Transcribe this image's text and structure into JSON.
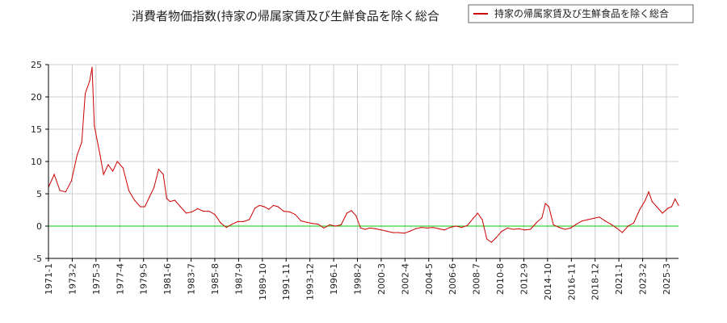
{
  "chart_data": {
    "type": "line",
    "title": "消費者物価指数(持家の帰属家賃及び生鮮食品を除く総合",
    "xlabel": "",
    "ylabel": "",
    "ylim": [
      -5,
      25
    ],
    "y_ticks": [
      -5,
      0,
      5,
      10,
      15,
      20,
      25
    ],
    "x_tick_labels": [
      "1971-1",
      "1973-2",
      "1975-3",
      "1977-4",
      "1979-5",
      "1981-6",
      "1983-7",
      "1985-8",
      "1987-9",
      "1989-10",
      "1991-11",
      "1993-12",
      "1996-1",
      "1998-2",
      "2000-3",
      "2002-4",
      "2004-5",
      "2006-6",
      "2008-7",
      "2010-8",
      "2012-9",
      "2014-10",
      "2016-11",
      "2018-12",
      "2021-1",
      "2023-2",
      "2025-3"
    ],
    "legend_position": "top-right",
    "grid": true,
    "colors": {
      "series": "#cc0000",
      "zero_line": "#00cc00",
      "grid": "#cccccc"
    },
    "series": [
      {
        "name": "持家の帰属家賃及び生鮮食品を除く総合",
        "x": [
          1971.0,
          1971.5,
          1972.0,
          1972.5,
          1973.0,
          1973.5,
          1973.9,
          1974.2,
          1974.6,
          1974.8,
          1975.0,
          1975.5,
          1975.8,
          1976.2,
          1976.6,
          1977.0,
          1977.5,
          1978.0,
          1978.5,
          1979.0,
          1979.4,
          1979.8,
          1980.2,
          1980.6,
          1981.0,
          1981.3,
          1981.6,
          1982.0,
          1982.5,
          1983.0,
          1983.5,
          1984.0,
          1984.5,
          1985.0,
          1985.5,
          1986.0,
          1986.5,
          1987.0,
          1987.5,
          1988.0,
          1988.5,
          1989.0,
          1989.4,
          1989.8,
          1990.2,
          1990.6,
          1991.0,
          1991.5,
          1992.0,
          1992.5,
          1993.0,
          1993.5,
          1994.0,
          1994.5,
          1995.0,
          1995.5,
          1996.0,
          1996.5,
          1997.0,
          1997.4,
          1997.8,
          1998.2,
          1998.6,
          1999.0,
          1999.5,
          2000.0,
          2000.5,
          2001.0,
          2001.5,
          2002.0,
          2002.5,
          2003.0,
          2003.5,
          2004.0,
          2004.5,
          2005.0,
          2005.5,
          2006.0,
          2006.5,
          2007.0,
          2007.5,
          2008.0,
          2008.4,
          2008.8,
          2009.2,
          2009.6,
          2010.0,
          2010.5,
          2011.0,
          2011.5,
          2012.0,
          2012.5,
          2013.0,
          2013.5,
          2014.0,
          2014.3,
          2014.6,
          2015.0,
          2015.5,
          2016.0,
          2016.5,
          2017.0,
          2017.5,
          2018.0,
          2018.5,
          2019.0,
          2019.5,
          2020.0,
          2020.5,
          2021.0,
          2021.5,
          2022.0,
          2022.5,
          2023.0,
          2023.3,
          2023.6,
          2024.0,
          2024.5,
          2025.0,
          2025.3,
          2025.6,
          2025.9
        ],
        "values": [
          6.0,
          8.0,
          5.5,
          5.3,
          7.0,
          11.0,
          13.0,
          20.5,
          22.5,
          24.6,
          15.5,
          11.0,
          8.0,
          9.5,
          8.5,
          10.0,
          9.0,
          5.5,
          4.0,
          3.0,
          3.0,
          4.5,
          6.0,
          8.8,
          8.0,
          4.3,
          3.8,
          4.0,
          3.0,
          2.0,
          2.2,
          2.7,
          2.3,
          2.3,
          1.8,
          0.5,
          -0.2,
          0.3,
          0.7,
          0.7,
          1.0,
          2.8,
          3.2,
          3.0,
          2.6,
          3.2,
          3.0,
          2.3,
          2.2,
          1.8,
          0.8,
          0.6,
          0.4,
          0.3,
          -0.3,
          0.2,
          0.0,
          0.2,
          2.0,
          2.4,
          1.6,
          -0.3,
          -0.5,
          -0.3,
          -0.4,
          -0.6,
          -0.8,
          -1.0,
          -1.0,
          -1.1,
          -0.8,
          -0.4,
          -0.2,
          -0.3,
          -0.2,
          -0.4,
          -0.6,
          -0.2,
          0.0,
          -0.2,
          0.1,
          1.2,
          2.0,
          1.0,
          -2.0,
          -2.5,
          -1.8,
          -0.8,
          -0.3,
          -0.5,
          -0.4,
          -0.6,
          -0.5,
          0.5,
          1.3,
          3.5,
          3.0,
          0.2,
          -0.2,
          -0.5,
          -0.3,
          0.3,
          0.8,
          1.0,
          1.2,
          1.4,
          0.8,
          0.3,
          -0.3,
          -1.0,
          0.0,
          0.5,
          2.5,
          4.0,
          5.3,
          3.8,
          3.0,
          2.0,
          2.8,
          3.0,
          4.2,
          3.2
        ]
      }
    ]
  }
}
